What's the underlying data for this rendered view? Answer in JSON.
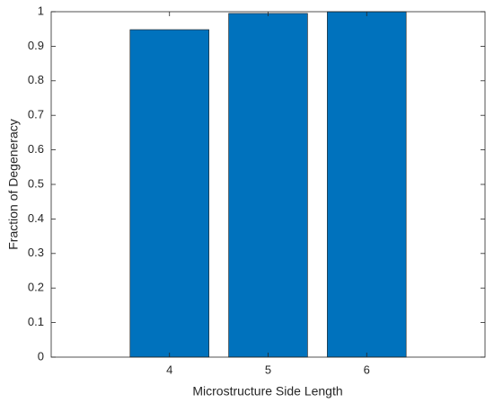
{
  "chart_data": {
    "type": "bar",
    "x": [
      4,
      5,
      6
    ],
    "values": [
      0.948,
      0.995,
      1.0
    ],
    "color": "#0072bd",
    "xlabel": "Microstructure Side Length",
    "ylabel": "Fraction of Degeneracy",
    "xlim": [
      2.8,
      7.2
    ],
    "xticks": [
      4,
      5,
      6
    ],
    "ylim": [
      0,
      1
    ],
    "yticks": [
      0,
      0.1,
      0.2,
      0.3,
      0.4,
      0.5,
      0.6,
      0.7,
      0.8,
      0.9,
      1
    ],
    "bar_width": 0.8
  }
}
